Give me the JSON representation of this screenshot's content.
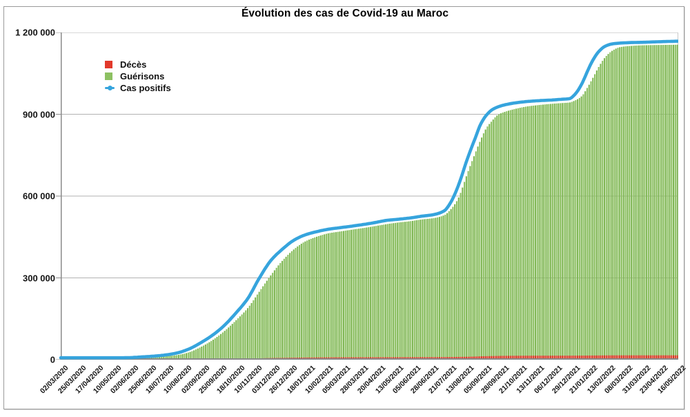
{
  "chart_data": {
    "type": "bar",
    "title": "Évolution des cas de Covid-19 au Maroc",
    "xlabel": "",
    "ylabel": "",
    "ylim": [
      0,
      1200000
    ],
    "x_range_days": [
      0,
      805
    ],
    "x_start_date": "02/03/2020",
    "x_end_date": "16/05/2022",
    "x_tick_interval_days": 23,
    "grid": "horizontal",
    "legend_position": "top-left-inside",
    "y_tick_values": [
      0,
      300000,
      600000,
      900000,
      1200000
    ],
    "y_tick_labels": [
      "0",
      "300 000",
      "600 000",
      "900 000",
      "1 200 000"
    ],
    "x_tick_labels": [
      "02/03/2020",
      "25/03/2020",
      "17/04/2020",
      "10/05/2020",
      "02/06/2020",
      "25/06/2020",
      "18/07/2020",
      "10/08/2020",
      "02/09/2020",
      "25/09/2020",
      "18/10/2020",
      "10/11/2020",
      "03/12/2020",
      "26/12/2020",
      "18/01/2021",
      "10/02/2021",
      "05/03/2021",
      "28/03/2021",
      "20/04/2021",
      "13/05/2021",
      "05/06/2021",
      "28/06/2021",
      "21/07/2021",
      "13/08/2021",
      "05/09/2021",
      "28/09/2021",
      "21/10/2021",
      "13/11/2021",
      "06/12/2021",
      "29/12/2021",
      "21/01/2022",
      "13/02/2022",
      "08/03/2022",
      "31/03/2022",
      "23/04/2022",
      "16/05/2022"
    ],
    "colors": {
      "grid": "#b2b2b2",
      "axis": "#8a8a8a",
      "plot_border_right": "#c9c9c9",
      "text": "#141414"
    },
    "series": [
      {
        "name": "Décès",
        "type": "bar",
        "z": 2,
        "color": "#e2392b",
        "color_alt": "#d63322",
        "points_day_value": [
          [
            0,
            0
          ],
          [
            30,
            40
          ],
          [
            60,
            170
          ],
          [
            91,
            205
          ],
          [
            121,
            230
          ],
          [
            152,
            370
          ],
          [
            167,
            600
          ],
          [
            183,
            1110
          ],
          [
            198,
            1600
          ],
          [
            213,
            2200
          ],
          [
            228,
            2900
          ],
          [
            244,
            3700
          ],
          [
            258,
            4900
          ],
          [
            274,
            6100
          ],
          [
            288,
            6600
          ],
          [
            305,
            7400
          ],
          [
            319,
            7900
          ],
          [
            336,
            8300
          ],
          [
            364,
            8700
          ],
          [
            395,
            8900
          ],
          [
            425,
            9000
          ],
          [
            456,
            9200
          ],
          [
            486,
            9400
          ],
          [
            508,
            9800
          ],
          [
            517,
            10200
          ],
          [
            531,
            10800
          ],
          [
            540,
            11600
          ],
          [
            548,
            12500
          ],
          [
            562,
            13400
          ],
          [
            578,
            14200
          ],
          [
            593,
            14500
          ],
          [
            609,
            14700
          ],
          [
            639,
            14800
          ],
          [
            663,
            14900
          ],
          [
            679,
            15100
          ],
          [
            694,
            15400
          ],
          [
            710,
            15800
          ],
          [
            729,
            16000
          ],
          [
            760,
            16060
          ],
          [
            805,
            16080
          ]
        ]
      },
      {
        "name": "Guérisons",
        "type": "bar",
        "z": 1,
        "color": "#8dc162",
        "color_alt": "#7db551",
        "points_day_value": [
          [
            0,
            0
          ],
          [
            20,
            6
          ],
          [
            30,
            30
          ],
          [
            45,
            350
          ],
          [
            60,
            1100
          ],
          [
            75,
            3000
          ],
          [
            91,
            4700
          ],
          [
            106,
            7500
          ],
          [
            121,
            9200
          ],
          [
            136,
            12500
          ],
          [
            152,
            17000
          ],
          [
            167,
            27000
          ],
          [
            183,
            47000
          ],
          [
            198,
            72000
          ],
          [
            213,
            104000
          ],
          [
            228,
            143000
          ],
          [
            244,
            190000
          ],
          [
            258,
            246000
          ],
          [
            274,
            310000
          ],
          [
            288,
            360000
          ],
          [
            305,
            407000
          ],
          [
            319,
            434000
          ],
          [
            336,
            453000
          ],
          [
            350,
            464000
          ],
          [
            364,
            470000
          ],
          [
            380,
            477000
          ],
          [
            395,
            483000
          ],
          [
            410,
            490000
          ],
          [
            425,
            497000
          ],
          [
            440,
            503000
          ],
          [
            456,
            508000
          ],
          [
            470,
            514000
          ],
          [
            486,
            519000
          ],
          [
            500,
            530000
          ],
          [
            508,
            550000
          ],
          [
            517,
            585000
          ],
          [
            531,
            690000
          ],
          [
            540,
            755000
          ],
          [
            548,
            810000
          ],
          [
            555,
            850000
          ],
          [
            562,
            875000
          ],
          [
            570,
            898000
          ],
          [
            578,
            908000
          ],
          [
            593,
            920000
          ],
          [
            609,
            929000
          ],
          [
            624,
            934000
          ],
          [
            639,
            938000
          ],
          [
            653,
            941000
          ],
          [
            663,
            943000
          ],
          [
            670,
            950000
          ],
          [
            679,
            966000
          ],
          [
            687,
            1000000
          ],
          [
            694,
            1035000
          ],
          [
            702,
            1077000
          ],
          [
            710,
            1110000
          ],
          [
            719,
            1133000
          ],
          [
            729,
            1146000
          ],
          [
            745,
            1151000
          ],
          [
            760,
            1153000
          ],
          [
            780,
            1154000
          ],
          [
            805,
            1155000
          ]
        ]
      },
      {
        "name": "Cas positifs",
        "type": "line",
        "z": 3,
        "color": "#36a4dd",
        "points_day_value": [
          [
            0,
            1
          ],
          [
            20,
            170
          ],
          [
            30,
            640
          ],
          [
            45,
            2300
          ],
          [
            60,
            4400
          ],
          [
            75,
            6600
          ],
          [
            91,
            7800
          ],
          [
            106,
            10300
          ],
          [
            121,
            13000
          ],
          [
            136,
            17200
          ],
          [
            152,
            25000
          ],
          [
            167,
            39000
          ],
          [
            183,
            63000
          ],
          [
            198,
            90000
          ],
          [
            213,
            125000
          ],
          [
            228,
            170000
          ],
          [
            244,
            225000
          ],
          [
            258,
            295000
          ],
          [
            274,
            364000
          ],
          [
            288,
            403000
          ],
          [
            305,
            440000
          ],
          [
            319,
            458000
          ],
          [
            336,
            471000
          ],
          [
            350,
            479000
          ],
          [
            364,
            484000
          ],
          [
            380,
            490000
          ],
          [
            395,
            496000
          ],
          [
            410,
            503000
          ],
          [
            425,
            511000
          ],
          [
            440,
            515000
          ],
          [
            456,
            520000
          ],
          [
            470,
            526000
          ],
          [
            486,
            532000
          ],
          [
            500,
            546000
          ],
          [
            508,
            575000
          ],
          [
            517,
            629000
          ],
          [
            531,
            744000
          ],
          [
            540,
            810000
          ],
          [
            548,
            867000
          ],
          [
            555,
            897000
          ],
          [
            562,
            916000
          ],
          [
            570,
            927000
          ],
          [
            578,
            934000
          ],
          [
            593,
            942000
          ],
          [
            609,
            947000
          ],
          [
            624,
            950000
          ],
          [
            639,
            952000
          ],
          [
            653,
            955000
          ],
          [
            663,
            957000
          ],
          [
            670,
            972000
          ],
          [
            679,
            1010000
          ],
          [
            687,
            1060000
          ],
          [
            694,
            1100000
          ],
          [
            702,
            1132000
          ],
          [
            710,
            1150000
          ],
          [
            719,
            1158000
          ],
          [
            729,
            1161000
          ],
          [
            745,
            1163000
          ],
          [
            760,
            1164000
          ],
          [
            780,
            1166000
          ],
          [
            805,
            1168000
          ]
        ]
      }
    ]
  }
}
